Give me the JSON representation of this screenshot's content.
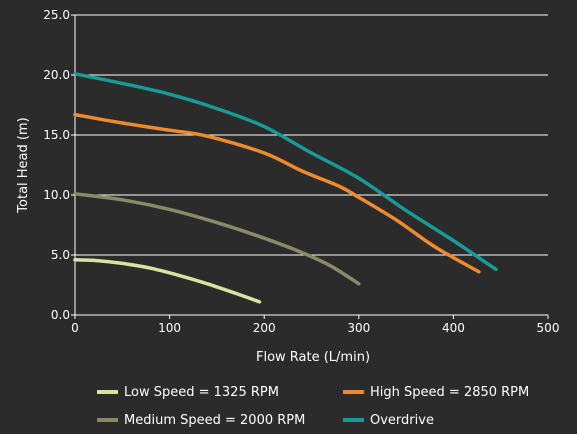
{
  "chart_data": {
    "type": "line",
    "title": "",
    "xlabel": "Flow Rate (L/min)",
    "ylabel": "Total Head (m)",
    "xlim": [
      0,
      500
    ],
    "ylim": [
      0,
      25
    ],
    "xticks": [
      0,
      100,
      200,
      300,
      400,
      500
    ],
    "yticks": [
      0.0,
      5.0,
      10.0,
      15.0,
      20.0,
      25.0
    ],
    "xtick_labels": [
      "0",
      "100",
      "200",
      "300",
      "400",
      "500"
    ],
    "ytick_labels": [
      "0.0",
      "5.0",
      "10.0",
      "15.0",
      "20.0",
      "25.0"
    ],
    "grid": "horizontal",
    "legend_position": "bottom",
    "series": [
      {
        "name": "Low Speed = 1325 RPM",
        "color": "#d8e3a0",
        "points": [
          [
            0,
            4.6
          ],
          [
            20,
            4.55
          ],
          [
            50,
            4.3
          ],
          [
            80,
            3.9
          ],
          [
            110,
            3.3
          ],
          [
            140,
            2.6
          ],
          [
            170,
            1.8
          ],
          [
            195,
            1.1
          ]
        ]
      },
      {
        "name": "High Speed = 2850 RPM",
        "color": "#ef8a2e",
        "points": [
          [
            0,
            16.7
          ],
          [
            50,
            16.0
          ],
          [
            100,
            15.4
          ],
          [
            140,
            14.9
          ],
          [
            200,
            13.5
          ],
          [
            240,
            12.0
          ],
          [
            280,
            10.7
          ],
          [
            300,
            9.8
          ],
          [
            340,
            7.9
          ],
          [
            380,
            5.7
          ],
          [
            427,
            3.6
          ]
        ]
      },
      {
        "name": "Medium Speed = 2000 RPM",
        "color": "#8b8a68",
        "points": [
          [
            0,
            10.1
          ],
          [
            50,
            9.6
          ],
          [
            100,
            8.8
          ],
          [
            150,
            7.7
          ],
          [
            200,
            6.4
          ],
          [
            240,
            5.2
          ],
          [
            270,
            4.1
          ],
          [
            300,
            2.6
          ]
        ]
      },
      {
        "name": "Overdrive",
        "color": "#1a9a96",
        "points": [
          [
            0,
            20.1
          ],
          [
            50,
            19.3
          ],
          [
            100,
            18.4
          ],
          [
            150,
            17.2
          ],
          [
            200,
            15.7
          ],
          [
            250,
            13.5
          ],
          [
            300,
            11.4
          ],
          [
            350,
            8.7
          ],
          [
            400,
            6.2
          ],
          [
            445,
            3.8
          ]
        ]
      }
    ]
  }
}
